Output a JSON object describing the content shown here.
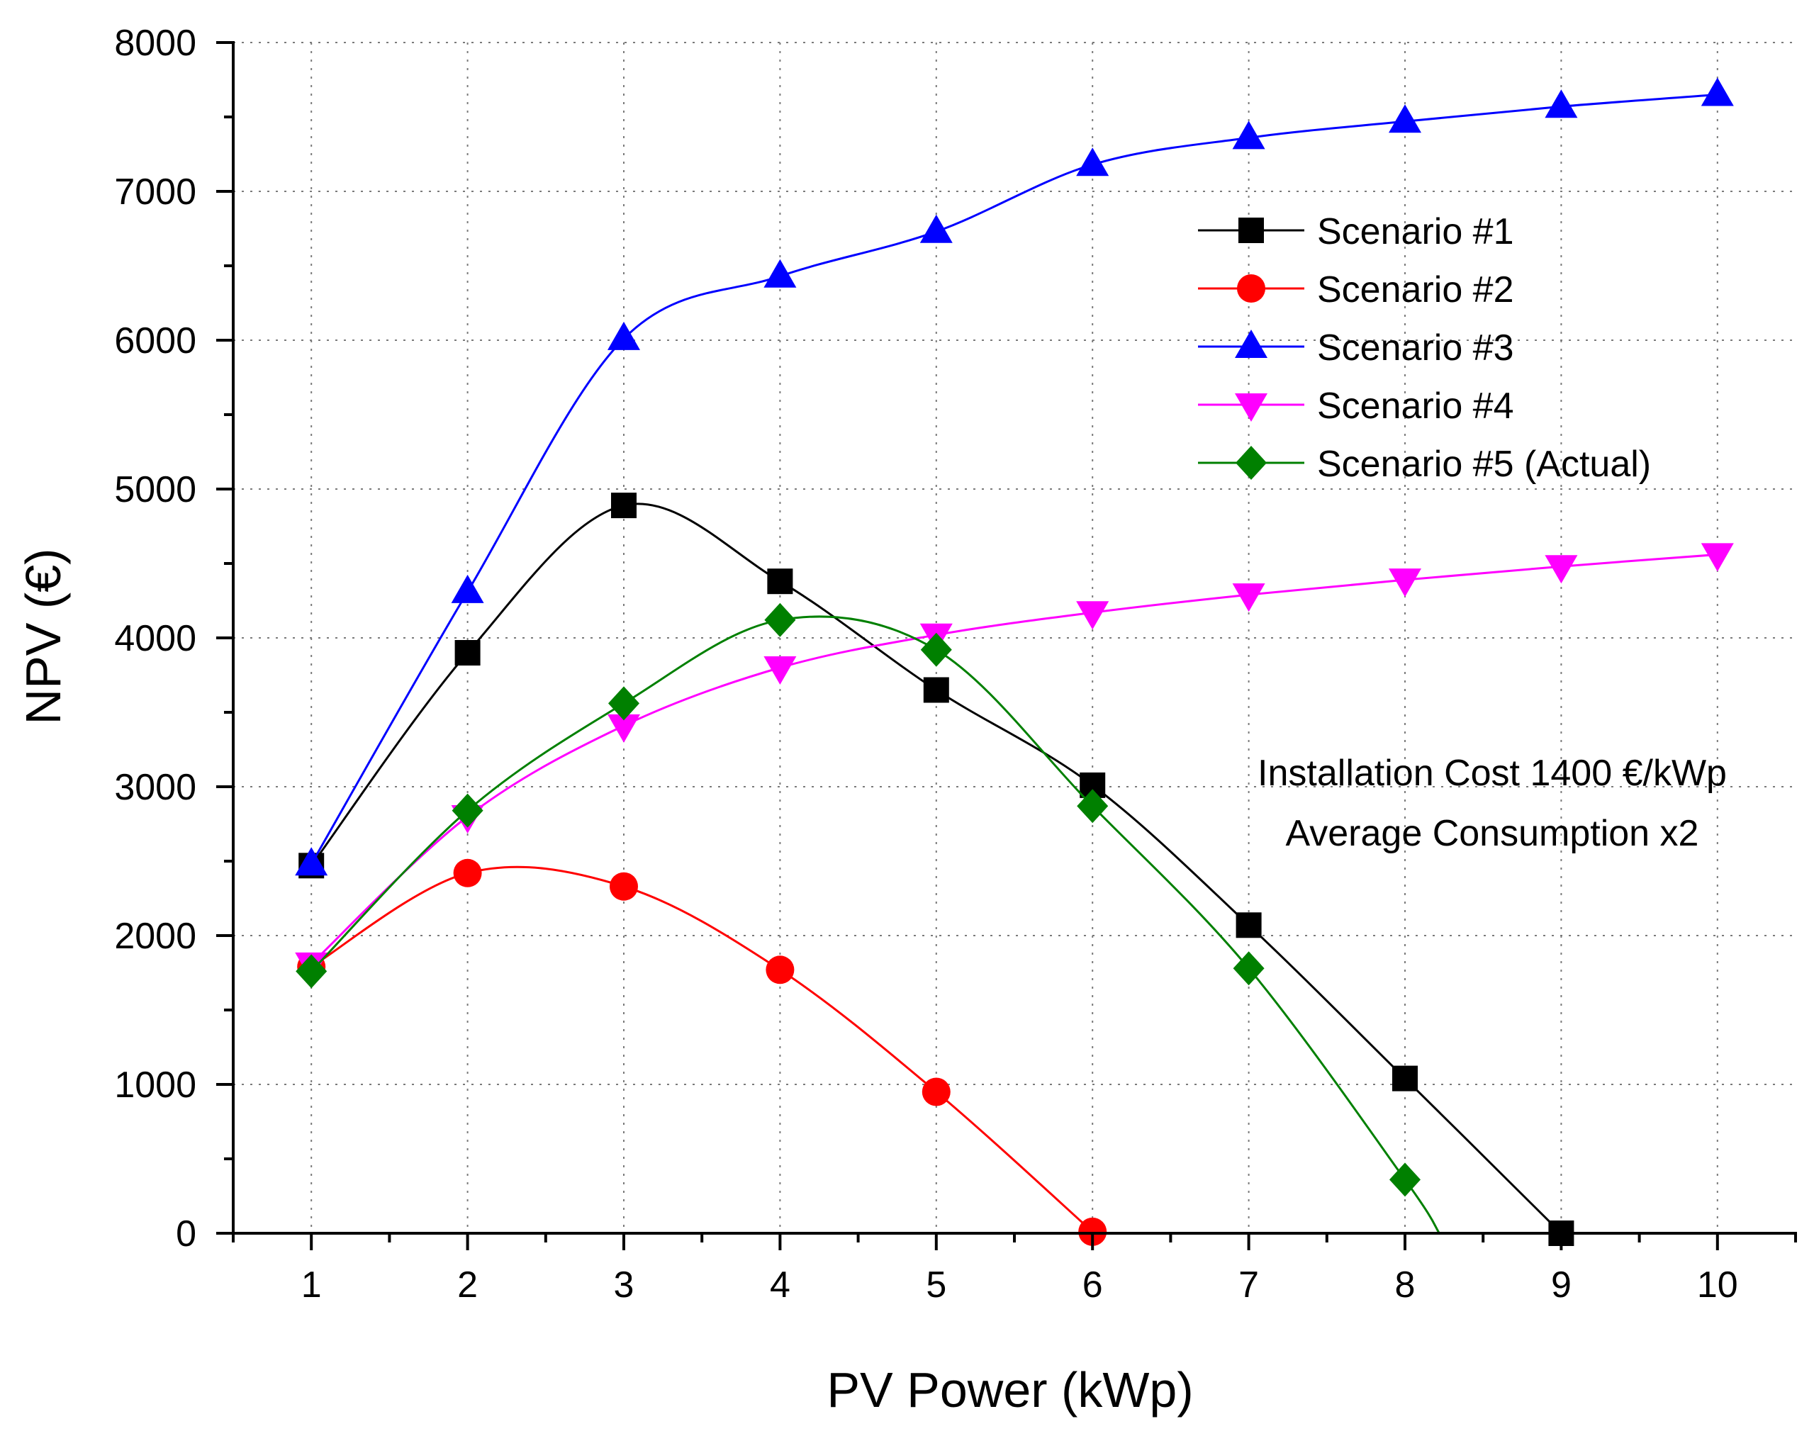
{
  "chart_data": {
    "type": "line",
    "title": "",
    "xlabel": "PV Power (kWp)",
    "ylabel": "NPV (€)",
    "xlim": [
      0.5,
      10.5
    ],
    "ylim": [
      0,
      8000
    ],
    "x_ticks": [
      1,
      2,
      3,
      4,
      5,
      6,
      7,
      8,
      9,
      10
    ],
    "y_ticks": [
      0,
      1000,
      2000,
      3000,
      4000,
      5000,
      6000,
      7000,
      8000
    ],
    "grid": true,
    "legend_position": "top-right",
    "series": [
      {
        "name": "Scenario #1",
        "color": "#000000",
        "marker": "square",
        "x": [
          1,
          2,
          3,
          4,
          5,
          6,
          7,
          8,
          9
        ],
        "values": [
          2470,
          3900,
          4890,
          4380,
          3650,
          3010,
          2070,
          1040,
          0
        ]
      },
      {
        "name": "Scenario #2",
        "color": "#ff0000",
        "marker": "circle",
        "x": [
          1,
          2,
          3,
          4,
          5,
          6
        ],
        "values": [
          1790,
          2420,
          2330,
          1770,
          950,
          10
        ]
      },
      {
        "name": "Scenario #3",
        "color": "#0000ff",
        "marker": "triangle-up",
        "x": [
          1,
          2,
          3,
          4,
          5,
          6,
          7,
          8,
          9,
          10
        ],
        "values": [
          2480,
          4310,
          6010,
          6430,
          6730,
          7180,
          7360,
          7470,
          7570,
          7650
        ]
      },
      {
        "name": "Scenario #4",
        "color": "#ff00ff",
        "marker": "triangle-down",
        "x": [
          1,
          2,
          3,
          4,
          5,
          6,
          7,
          8,
          9,
          10
        ],
        "values": [
          1810,
          2800,
          3410,
          3800,
          4020,
          4170,
          4290,
          4390,
          4480,
          4560
        ]
      },
      {
        "name": "Scenario #5 (Actual)",
        "color": "#008000",
        "marker": "diamond",
        "x": [
          1,
          2,
          3,
          4,
          5,
          6,
          7,
          8,
          8.22
        ],
        "values": [
          1760,
          2840,
          3560,
          4120,
          3920,
          2870,
          1780,
          360,
          0
        ],
        "marker_count": 8
      }
    ],
    "annotations": [
      "Installation Cost 1400 €/kWp",
      "Average Consumption x2"
    ]
  }
}
